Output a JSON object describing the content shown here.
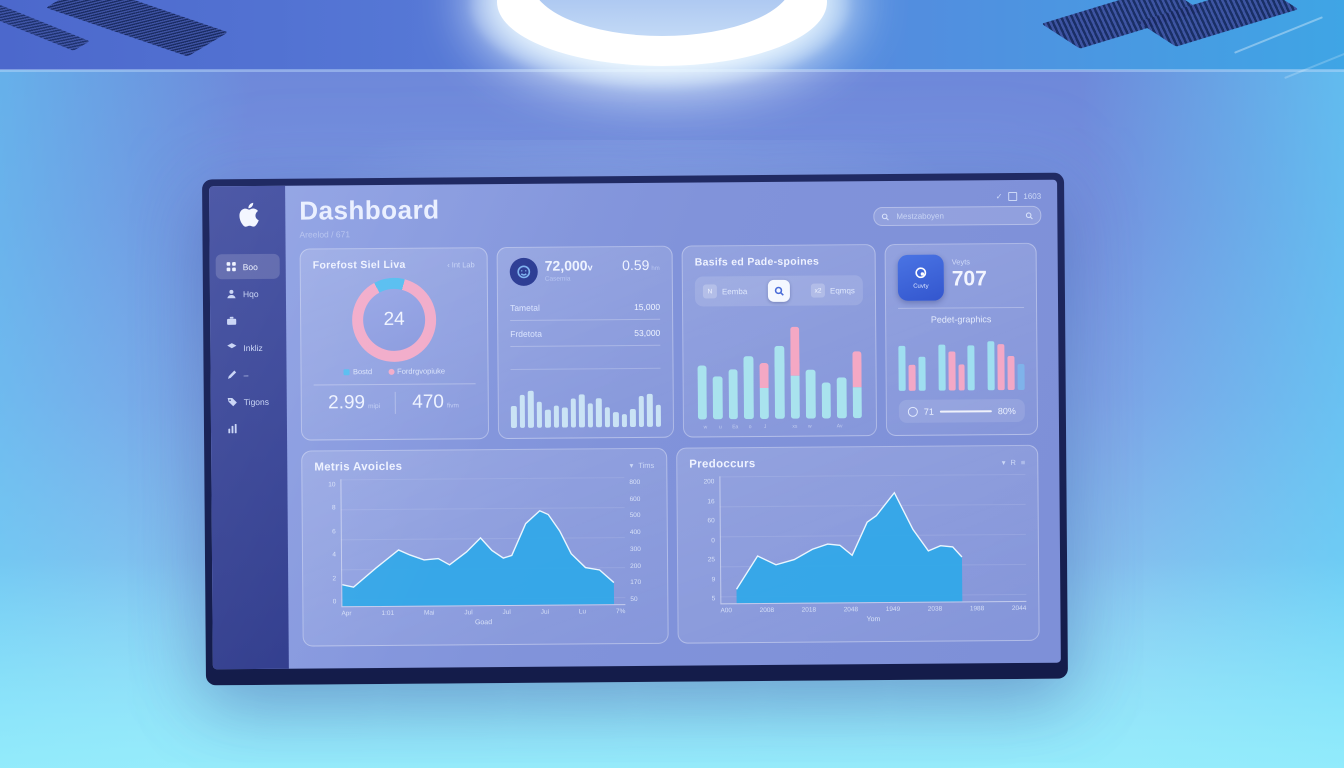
{
  "header": {
    "title": "Dashboard",
    "subtitle": "Areelod / 671",
    "meta": "1603"
  },
  "search": {
    "placeholder": "Mestzaboyen"
  },
  "sidebar": {
    "items": [
      {
        "icon": "grid",
        "label": "Boo",
        "active": true
      },
      {
        "icon": "user",
        "label": "Hqo",
        "active": false
      },
      {
        "icon": "briefcase",
        "label": "",
        "active": false
      },
      {
        "icon": "layers",
        "label": "Inkliz",
        "active": false
      },
      {
        "icon": "pen",
        "label": "–",
        "active": false
      },
      {
        "icon": "tag",
        "label": "Tigons",
        "active": false
      },
      {
        "icon": "chart",
        "label": "",
        "active": false
      }
    ]
  },
  "cards": {
    "forecast": {
      "title": "Forefost Siel Liva",
      "link": "Int Lab",
      "donut_value": "24",
      "legend": [
        {
          "label": "Bostd",
          "color": "#55bdf0"
        },
        {
          "label": "Fordrgvopiuke",
          "color": "#f2abc9"
        }
      ],
      "stats": [
        {
          "value": "2.99",
          "suffix": "mipi"
        },
        {
          "value": "470",
          "suffix": "fivm"
        }
      ]
    },
    "metrics": {
      "value": "72,000",
      "value_suffix": "v",
      "value_sub": "Casemia",
      "secondary": "0.59",
      "secondary_suffix": "hm",
      "rows": [
        {
          "label": "Tametal",
          "value": "15,000"
        },
        {
          "label": "Frdetota",
          "value": "53,000"
        }
      ]
    },
    "basifs": {
      "title": "Basifs ed Pade-spoines",
      "control_left_badge": "N",
      "control_left_label": "Eemba",
      "control_right_badge": "x2",
      "control_right_label": "Eqmqs"
    },
    "counter": {
      "icon_label": "Cuvty",
      "kicker": "Veyts",
      "value": "707",
      "subtitle": "Pedet-graphics",
      "footer_min": "71",
      "footer_max": "80%"
    }
  },
  "panels": {
    "metris": {
      "title": "Metris Avoicles",
      "menu": "Tims",
      "xlabel": "Goad"
    },
    "predoccurs": {
      "title": "Predoccurs",
      "menu": "R",
      "xlabel": "Yom"
    }
  },
  "colors": {
    "accent_blue": "#55bdf0",
    "accent_pink": "#f2abc9",
    "chart_cyan": "#33a8e8",
    "bar_cyan": "#a9e3ee",
    "bar_pink": "#f4a8c4",
    "sidebar": "#32408f",
    "bezel": "#1a2252"
  },
  "chart_data": [
    {
      "id": "donut-forecast",
      "type": "donut",
      "center_label": "24",
      "start_deg": -28,
      "segments": [
        {
          "name": "Bostd",
          "value": 12,
          "color": "#55bdf0"
        },
        {
          "name": "Fordrgvopiuke",
          "value": 88,
          "color": "#f2abc9"
        }
      ]
    },
    {
      "id": "spark-bars",
      "type": "bar",
      "color": "#cfe9f6",
      "values": [
        0.5,
        0.75,
        0.85,
        0.6,
        0.4,
        0.5,
        0.45,
        0.65,
        0.75,
        0.55,
        0.65,
        0.45,
        0.35,
        0.3,
        0.4,
        0.7,
        0.75,
        0.5
      ]
    },
    {
      "id": "basifs-bars",
      "type": "stacked-bar",
      "bars": [
        {
          "cyan": 0.5,
          "pink": 0
        },
        {
          "cyan": 0.4,
          "pink": 0
        },
        {
          "cyan": 0.46,
          "pink": 0
        },
        {
          "cyan": 0.58,
          "pink": 0
        },
        {
          "cyan": 0.29,
          "pink": 0.23
        },
        {
          "cyan": 0.68,
          "pink": 0
        },
        {
          "cyan": 0.4,
          "pink": 0.45
        },
        {
          "cyan": 0.45,
          "pink": 0
        },
        {
          "cyan": 0.33,
          "pink": 0
        },
        {
          "cyan": 0.38,
          "pink": 0
        },
        {
          "cyan": 0.29,
          "pink": 0.33
        }
      ],
      "x_labels": [
        "w",
        "u",
        "Ea",
        "o",
        "J",
        "",
        "xs",
        "w",
        "",
        "Av",
        ""
      ]
    },
    {
      "id": "pedet-bars",
      "type": "color-bar",
      "bars": [
        {
          "c": "cyan",
          "h": 0.78
        },
        {
          "c": "pink",
          "h": 0.45
        },
        {
          "c": "cyan",
          "h": 0.58
        },
        {
          "c": "gap"
        },
        {
          "c": "cyan",
          "h": 0.8
        },
        {
          "c": "pink",
          "h": 0.68
        },
        {
          "c": "pink",
          "h": 0.45
        },
        {
          "c": "cyan",
          "h": 0.78
        },
        {
          "c": "gap"
        },
        {
          "c": "cyan",
          "h": 0.85
        },
        {
          "c": "pink",
          "h": 0.8
        },
        {
          "c": "pink",
          "h": 0.58
        },
        {
          "c": "blue",
          "h": 0.45
        }
      ]
    },
    {
      "id": "metris-area",
      "type": "area",
      "title": "Metris Avoicles",
      "xlabel": "Goad",
      "points": [
        [
          0,
          17
        ],
        [
          4,
          15
        ],
        [
          12,
          30
        ],
        [
          20,
          44
        ],
        [
          24,
          40
        ],
        [
          29,
          36
        ],
        [
          34,
          37
        ],
        [
          38,
          32
        ],
        [
          44,
          42
        ],
        [
          49,
          53
        ],
        [
          53,
          43
        ],
        [
          57,
          37
        ],
        [
          60,
          39
        ],
        [
          65,
          64
        ],
        [
          70,
          74
        ],
        [
          73,
          71
        ],
        [
          77,
          58
        ],
        [
          81,
          40
        ],
        [
          86,
          29
        ],
        [
          91,
          27
        ],
        [
          96,
          17
        ]
      ],
      "y_ticks_left": [
        "10",
        "8",
        "6",
        "4",
        "2",
        "0"
      ],
      "y_ticks_right": [
        "800",
        "600",
        "500",
        "400",
        "300",
        "200",
        "170",
        "50"
      ],
      "x_ticks": [
        "Apr",
        "1:01",
        "Mai",
        "Jul",
        "Jul",
        "Jui",
        "Lu",
        "7%"
      ],
      "fill": "#33a8e8",
      "stroke": "#eaf6ff"
    },
    {
      "id": "predoccurs-area",
      "type": "area",
      "title": "Predoccurs",
      "xlabel": "Yom",
      "points": [
        [
          5,
          11
        ],
        [
          12,
          37
        ],
        [
          18,
          30
        ],
        [
          24,
          34
        ],
        [
          30,
          42
        ],
        [
          35,
          46
        ],
        [
          39,
          45
        ],
        [
          43,
          37
        ],
        [
          48,
          63
        ],
        [
          51,
          68
        ],
        [
          57,
          86
        ],
        [
          63,
          57
        ],
        [
          68,
          40
        ],
        [
          72,
          44
        ],
        [
          76,
          43
        ],
        [
          79,
          35
        ]
      ],
      "y_ticks_left": [
        "200",
        "16",
        "60",
        "0",
        "25",
        "9",
        "5"
      ],
      "y_ticks_right": [],
      "x_ticks": [
        "A00",
        "2008",
        "2018",
        "2048",
        "1949",
        "2038",
        "1988",
        "2044"
      ],
      "fill": "#33a8e8",
      "stroke": "#eaf6ff"
    }
  ]
}
